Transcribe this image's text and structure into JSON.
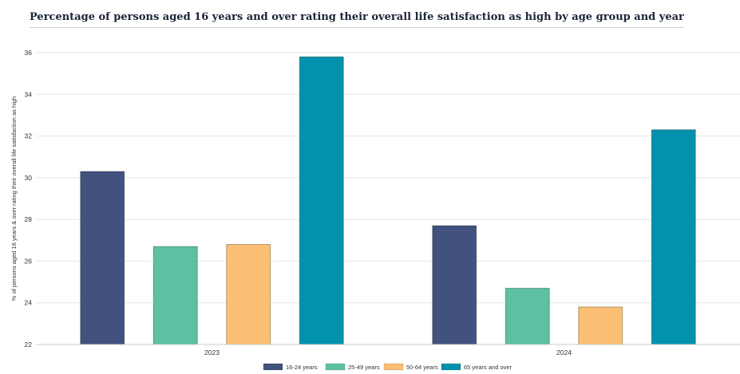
{
  "chart_data": {
    "type": "bar",
    "title": "Percentage of persons aged 16 years and over rating their overall life satisfaction as high by age group and year",
    "xlabel": "",
    "ylabel": "% of persons aged 16 years & over rating their overall life satisfaction as high",
    "ylim": [
      22,
      36
    ],
    "yticks": [
      "22",
      "24",
      "26",
      "28",
      "30",
      "32",
      "34",
      "36"
    ],
    "categories": [
      "2023",
      "2024"
    ],
    "series": [
      {
        "name": "16-24 years",
        "color": "#41527f",
        "values": [
          30.3,
          27.7
        ]
      },
      {
        "name": "25-49 years",
        "color": "#5bc1a2",
        "values": [
          26.7,
          24.7
        ]
      },
      {
        "name": "50-64 years",
        "color": "#fcbf73",
        "values": [
          26.8,
          23.8
        ]
      },
      {
        "name": "65 years and over",
        "color": "#0292ad",
        "values": [
          35.8,
          32.3
        ]
      }
    ],
    "grid": true,
    "legend_position": "bottom-center"
  }
}
